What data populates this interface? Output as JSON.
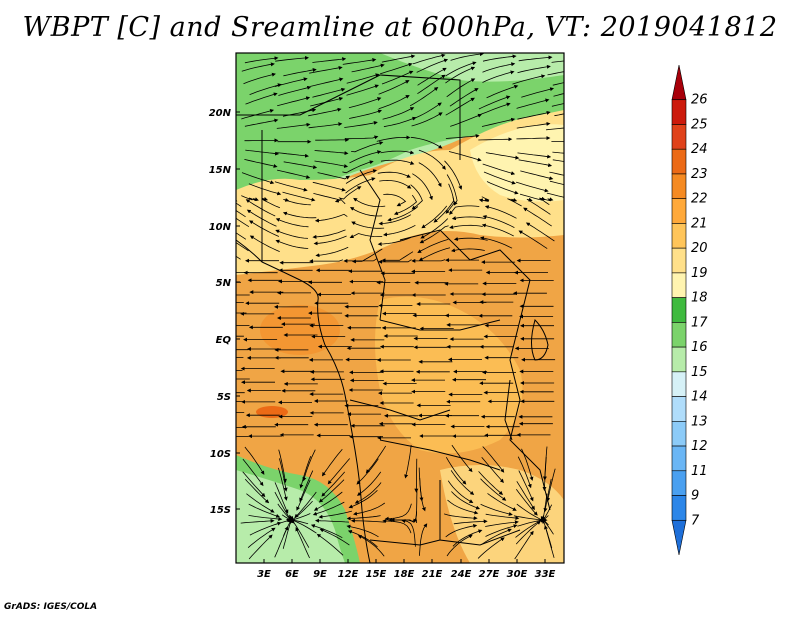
{
  "title": "WBPT [C] and Sreamline at 600hPa, VT: 2019041812",
  "credit": "GrADS: IGES/COLA",
  "lon_labels": [
    "3E",
    "6E",
    "9E",
    "12E",
    "15E",
    "18E",
    "21E",
    "24E",
    "27E",
    "30E",
    "33E"
  ],
  "lat_labels": [
    "20N",
    "15N",
    "10N",
    "5N",
    "EQ",
    "5S",
    "10S",
    "15S"
  ],
  "colorbar": {
    "labels": [
      "7",
      "9",
      "11",
      "12",
      "13",
      "14",
      "15",
      "16",
      "17",
      "18",
      "19",
      "20",
      "21",
      "22",
      "23",
      "24",
      "25",
      "26"
    ],
    "colors": [
      "#1e6fd9",
      "#2c86e8",
      "#4aa0f0",
      "#6ab6f5",
      "#8ccbf8",
      "#b0ddfb",
      "#d6f1f7",
      "#b7ecaa",
      "#7bd36b",
      "#3fba3f",
      "#fff4b0",
      "#ffe08a",
      "#ffc55a",
      "#ffa93a",
      "#f58a22",
      "#ec6a16",
      "#e0421a",
      "#cc1a0c",
      "#a8000a"
    ]
  },
  "map": {
    "background_color": "#f0a545",
    "regions": [
      {
        "name": "sahel-green",
        "color": "#7bd36b"
      },
      {
        "name": "north-light",
        "color": "#b7ecaa"
      },
      {
        "name": "yellow-band",
        "color": "#ffe08a"
      },
      {
        "name": "south-green",
        "color": "#7bd36b"
      }
    ]
  }
}
